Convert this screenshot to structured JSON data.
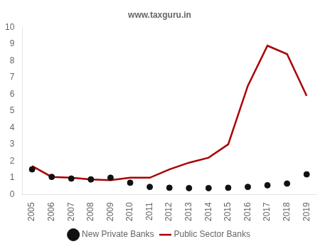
{
  "chart_data": {
    "type": "line",
    "title": "www.taxguru.in",
    "x": [
      2005,
      2006,
      2007,
      2008,
      2009,
      2010,
      2011,
      2012,
      2013,
      2014,
      2015,
      2016,
      2017,
      2018,
      2019
    ],
    "series": [
      {
        "name": "New Private Banks",
        "color": "#111111",
        "marker": "circle",
        "line_style": "none",
        "values": [
          1.5,
          1.05,
          0.95,
          0.9,
          1.0,
          0.7,
          0.45,
          0.4,
          0.38,
          0.38,
          0.4,
          0.45,
          0.55,
          0.65,
          1.2
        ]
      },
      {
        "name": "Public Sector Banks",
        "color": "#aa0000",
        "marker": "none",
        "line_style": "solid",
        "values": [
          1.7,
          1.05,
          1.0,
          0.9,
          0.85,
          1.0,
          1.0,
          1.5,
          1.9,
          2.2,
          3.0,
          6.5,
          8.9,
          8.4,
          5.9
        ]
      }
    ],
    "xlim": [
      2004.5,
      2019.5
    ],
    "xticks": [
      2005,
      2006,
      2007,
      2008,
      2009,
      2010,
      2011,
      2012,
      2013,
      2014,
      2015,
      2016,
      2017,
      2018,
      2019
    ],
    "ylim": [
      0,
      10
    ],
    "yticks": [
      0,
      1,
      2,
      3,
      4,
      5,
      6,
      7,
      8,
      9,
      10
    ],
    "grid": false,
    "legend": "bottom"
  }
}
